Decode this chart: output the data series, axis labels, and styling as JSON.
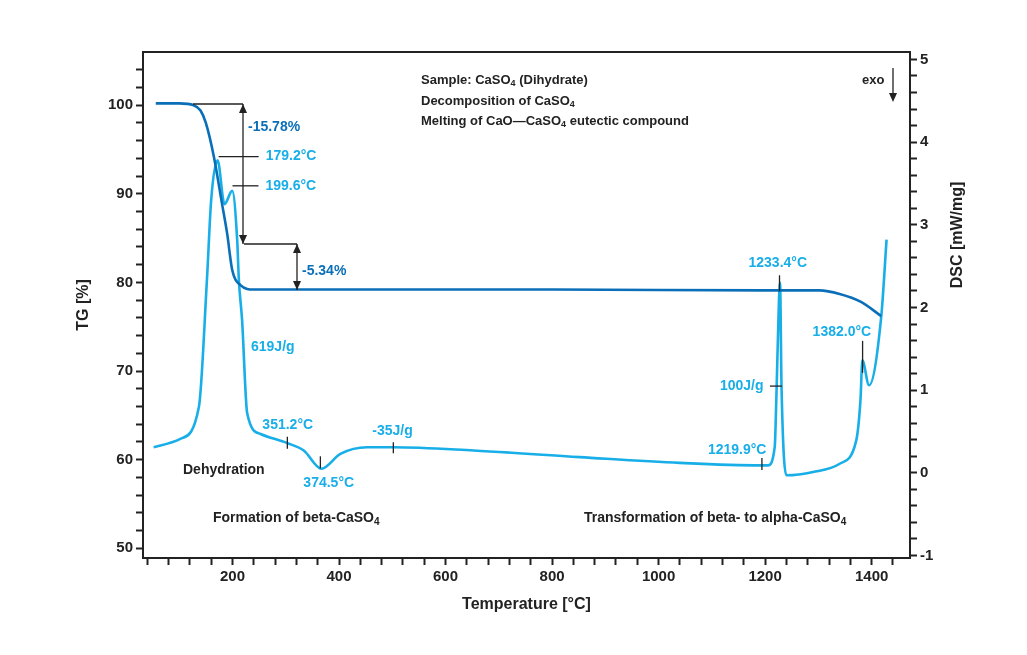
{
  "chart_data": {
    "type": "line",
    "xlabel": "Temperature [°C]",
    "ylabel": "TG [%]",
    "y2label": "DSC [mW/mg]",
    "xlim": [
      32,
      1472
    ],
    "ylim": [
      48.9,
      106
    ],
    "y2lim": [
      -1.03,
      5.09
    ],
    "xticks": [
      {
        "value": 40,
        "label": null
      },
      {
        "value": 80,
        "label": null
      },
      {
        "value": 120,
        "label": null
      },
      {
        "value": 160,
        "label": null
      },
      200,
      {
        "value": 240,
        "label": null
      },
      {
        "value": 280,
        "label": null
      },
      {
        "value": 320,
        "label": null
      },
      {
        "value": 360,
        "label": null
      },
      400,
      {
        "value": 440,
        "label": null
      },
      {
        "value": 480,
        "label": null
      },
      {
        "value": 520,
        "label": null
      },
      {
        "value": 560,
        "label": null
      },
      600,
      {
        "value": 640,
        "label": null
      },
      {
        "value": 680,
        "label": null
      },
      {
        "value": 720,
        "label": null
      },
      {
        "value": 760,
        "label": null
      },
      800,
      {
        "value": 840,
        "label": null
      },
      {
        "value": 880,
        "label": null
      },
      {
        "value": 920,
        "label": null
      },
      {
        "value": 960,
        "label": null
      },
      1000,
      {
        "value": 1040,
        "label": null
      },
      {
        "value": 1080,
        "label": null
      },
      {
        "value": 1120,
        "label": null
      },
      {
        "value": 1160,
        "label": null
      },
      1200,
      {
        "value": 1240,
        "label": null
      },
      {
        "value": 1280,
        "label": null
      },
      {
        "value": 1320,
        "label": null
      },
      {
        "value": 1360,
        "label": null
      },
      1400,
      {
        "value": 1440,
        "label": null
      }
    ],
    "yticks": [
      50,
      {
        "value": 52,
        "label": null
      },
      {
        "value": 54,
        "label": null
      },
      {
        "value": 56,
        "label": null
      },
      {
        "value": 58,
        "label": null
      },
      60,
      {
        "value": 62,
        "label": null
      },
      {
        "value": 64,
        "label": null
      },
      {
        "value": 66,
        "label": null
      },
      {
        "value": 68,
        "label": null
      },
      70,
      {
        "value": 72,
        "label": null
      },
      {
        "value": 74,
        "label": null
      },
      {
        "value": 76,
        "label": null
      },
      {
        "value": 78,
        "label": null
      },
      80,
      {
        "value": 82,
        "label": null
      },
      {
        "value": 84,
        "label": null
      },
      {
        "value": 86,
        "label": null
      },
      {
        "value": 88,
        "label": null
      },
      90,
      {
        "value": 92,
        "label": null
      },
      {
        "value": 94,
        "label": null
      },
      {
        "value": 96,
        "label": null
      },
      {
        "value": 98,
        "label": null
      },
      100,
      {
        "value": 102,
        "label": null
      },
      {
        "value": 104,
        "label": null
      }
    ],
    "y2ticks": [
      -1,
      {
        "value": -0.8,
        "label": null
      },
      {
        "value": -0.6,
        "label": null
      },
      {
        "value": -0.4,
        "label": null
      },
      {
        "value": -0.2,
        "label": null
      },
      0,
      {
        "value": 0.2,
        "label": null
      },
      {
        "value": 0.4,
        "label": null
      },
      {
        "value": 0.6,
        "label": null
      },
      {
        "value": 0.8,
        "label": null
      },
      1,
      {
        "value": 1.2,
        "label": null
      },
      {
        "value": 1.4,
        "label": null
      },
      {
        "value": 1.6,
        "label": null
      },
      {
        "value": 1.8,
        "label": null
      },
      2,
      {
        "value": 2.2,
        "label": null
      },
      {
        "value": 2.4,
        "label": null
      },
      {
        "value": 2.6,
        "label": null
      },
      {
        "value": 2.8,
        "label": null
      },
      3,
      {
        "value": 3.2,
        "label": null
      },
      {
        "value": 3.4,
        "label": null
      },
      {
        "value": 3.6,
        "label": null
      },
      {
        "value": 3.8,
        "label": null
      },
      4,
      {
        "value": 4.2,
        "label": null
      },
      {
        "value": 4.4,
        "label": null
      },
      {
        "value": 4.6,
        "label": null
      },
      {
        "value": 4.8,
        "label": null
      },
      5
    ],
    "series": [
      {
        "color": "#0a6fb8",
        "x": [
          56,
          100,
          127,
          140,
          150,
          165,
          180,
          190,
          199.5,
          215,
          240,
          400,
          800,
          1200,
          1302,
          1340,
          1380,
          1418
        ],
        "values": [
          100.2,
          100.2,
          100,
          99.4,
          98,
          94.2,
          89,
          85.5,
          81.4,
          79.7,
          79.2,
          79.2,
          79.2,
          79.1,
          79.1,
          78.7,
          77.8,
          76.2
        ]
      },
      {
        "color": "#18aee8",
        "axis": "y2",
        "x": [
          52,
          102,
          137,
          152,
          160,
          172,
          185,
          199.5,
          208.8,
          212,
          218,
          227.6,
          252.6,
          302.6,
          333.8,
          367,
          402.6,
          452.6,
          502.6,
          652.6,
          852,
          1040,
          1193,
          1205,
          1218,
          1221,
          1226,
          1228,
          1230.8,
          1240,
          1290,
          1340,
          1371,
          1379,
          1382.6,
          1395,
          1418,
          1428
        ],
        "values": [
          0.31,
          0.41,
          0.8,
          2.33,
          3.3,
          3.78,
          3.25,
          3.41,
          2.82,
          2.33,
          1.85,
          0.72,
          0.47,
          0.36,
          0.27,
          0.05,
          0.23,
          0.31,
          0.31,
          0.27,
          0.19,
          0.12,
          0.09,
          0.09,
          0.31,
          0.88,
          2.09,
          2.3,
          1.04,
          -0.03,
          0.01,
          0.11,
          0.39,
          0.88,
          1.36,
          1.06,
          1.89,
          2.82
        ]
      }
    ],
    "annotations": [
      "Sample: CaSO$_{4}$ (Dihydrate)",
      "Decomposition of CaSO$_{4}$",
      "Melting of CaO—CaSO$_{4}$ eutectic compound",
      "exo",
      "-15.78%",
      {
        "text": "179.2°C",
        "x": 174,
        "y": 94.2
      },
      {
        "text": "199.6°C",
        "x": 200,
        "y": 90.9
      },
      "-5.34%",
      "619J/g",
      {
        "text": "351.2°C",
        "x": 303,
        "y": 61.9
      },
      {
        "text": "374.5°C",
        "x": 365,
        "y": 59.7
      },
      {
        "text": "-35J/g",
        "x": 502,
        "y": 61.4
      },
      "Dehydration",
      "Formation of beta-CaSO$_{4}$",
      {
        "text": "1219.9°C",
        "x": 1194,
        "y": 59.5
      },
      {
        "text": "1233.4°C",
        "x": 1227,
        "y": 79.9
      },
      {
        "text": "100J/g",
        "x": 1224,
        "y": 68.3
      },
      {
        "text": "1382.0°C",
        "x": 1383,
        "y": 71.6
      },
      "Transformation of beta- to alpha-CaSO$_{4}$"
    ]
  }
}
